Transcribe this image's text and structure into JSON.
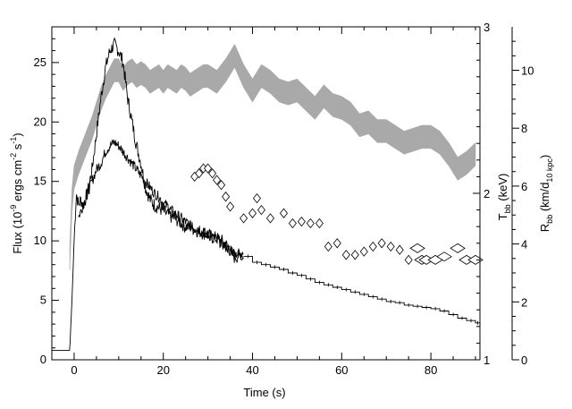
{
  "chart_data": {
    "type": "line",
    "title": "",
    "xlabel": "Time (s)",
    "ylabel": {
      "main": "Flux (10",
      "exp1": "-9",
      "mid1": " ergs cm",
      "exp2": "-2",
      "mid2": " s",
      "exp3": "-1",
      "end": ")"
    },
    "y2label_temp": {
      "main": "T",
      "sub": "bb",
      "end": " (keV)"
    },
    "y2label_radius": {
      "main": "R",
      "sub1": "bb",
      "mid": " (km/d",
      "sub2": "10 kpc",
      "end": ")"
    },
    "xlim": [
      -5,
      91
    ],
    "ylim": [
      0,
      28
    ],
    "temp_lim": [
      1,
      3
    ],
    "radius_lim": [
      0,
      11.5
    ],
    "x_ticks": [
      0,
      20,
      40,
      60,
      80
    ],
    "y_ticks": [
      0,
      5,
      10,
      15,
      20,
      25
    ],
    "temp_ticks": [
      1,
      2,
      3
    ],
    "radius_ticks": [
      0,
      2,
      4,
      6,
      8,
      10
    ],
    "series": [
      {
        "kind": "flux_bright",
        "x": [
          -5,
          -1,
          -0.5,
          0,
          0.5,
          1,
          1.5,
          2,
          3,
          4,
          5,
          6,
          7,
          8,
          9,
          10,
          11,
          12,
          13,
          14,
          15,
          16,
          17,
          18,
          19,
          20,
          21,
          22,
          23,
          24,
          25,
          26,
          27,
          28,
          29,
          30,
          31,
          32,
          33,
          34,
          35,
          36,
          37,
          38
        ],
        "y": [
          0.8,
          0.8,
          5,
          10,
          14,
          13,
          13.5,
          13,
          14,
          16,
          19,
          22,
          24.5,
          26,
          26.5,
          26,
          25,
          22,
          20,
          18,
          16.5,
          14.5,
          13.5,
          13,
          12.8,
          12.5,
          12.2,
          12,
          11.8,
          11.5,
          11.2,
          11.2,
          11,
          10.8,
          10.7,
          10.5,
          10.3,
          10.2,
          10,
          9.7,
          9.2,
          8.6,
          8.8,
          9.2
        ]
      },
      {
        "kind": "flux_faint",
        "x": [
          1,
          2,
          3,
          4,
          5,
          6,
          7,
          8,
          9,
          10,
          11,
          12,
          13,
          14,
          15,
          16,
          17,
          18,
          19,
          20,
          21,
          22,
          23,
          24,
          25,
          26,
          27,
          28,
          29,
          30,
          31,
          32,
          33,
          34,
          35,
          36,
          37,
          38
        ],
        "y": [
          12,
          13,
          14,
          15,
          16,
          16.5,
          17.5,
          18,
          18.3,
          18,
          17.5,
          17,
          16.5,
          16,
          15.5,
          15,
          14.5,
          14,
          13.7,
          13.2,
          12.9,
          12.5,
          12.2,
          11.9,
          11.6,
          11.3,
          11.1,
          10.9,
          10.7,
          10.5,
          10.3,
          10.1,
          9.8,
          9.5,
          9.2,
          9,
          8.8,
          8.7
        ]
      },
      {
        "kind": "flux_step",
        "x": [
          38,
          40,
          42,
          44,
          46,
          48,
          50,
          52,
          54,
          56,
          58,
          60,
          62,
          64,
          66,
          68,
          70,
          72,
          74,
          76,
          78,
          80,
          82,
          84,
          86,
          88,
          90
        ],
        "y": [
          8.7,
          8.2,
          8.0,
          7.8,
          7.6,
          7.3,
          7.1,
          6.8,
          6.5,
          6.3,
          6.1,
          5.9,
          5.7,
          5.5,
          5.3,
          5.1,
          4.9,
          4.8,
          4.6,
          4.5,
          4.4,
          4.3,
          4.1,
          3.8,
          3.5,
          3.3,
          3.1
        ]
      },
      {
        "kind": "radius_band",
        "x": [
          -1,
          -0.5,
          0,
          1,
          2,
          3,
          4,
          5,
          6,
          7,
          8,
          9,
          10,
          11,
          12,
          13,
          14,
          15,
          16,
          17,
          18,
          19,
          20,
          21,
          22,
          23,
          24,
          25,
          26,
          27,
          28,
          29,
          30,
          32,
          34,
          36,
          38,
          40,
          42,
          44,
          46,
          48,
          50,
          52,
          54,
          56,
          58,
          60,
          62,
          64,
          66,
          68,
          70,
          72,
          74,
          76,
          78,
          80,
          82,
          84,
          86,
          88,
          90
        ],
        "y": [
          3.5,
          5.5,
          6.3,
          6.8,
          7.2,
          7.6,
          8.0,
          8.5,
          9.0,
          9.4,
          9.7,
          10.0,
          10.0,
          9.7,
          9.9,
          10.0,
          9.8,
          9.9,
          9.8,
          9.6,
          9.7,
          9.8,
          9.6,
          9.8,
          9.7,
          9.6,
          9.8,
          9.7,
          9.5,
          9.6,
          9.7,
          9.8,
          9.8,
          9.6,
          10.0,
          10.5,
          9.8,
          9.3,
          9.8,
          9.6,
          9.3,
          9.2,
          9.3,
          9.0,
          8.7,
          9.1,
          8.8,
          8.7,
          8.5,
          8.1,
          8.2,
          7.9,
          7.9,
          7.7,
          7.5,
          7.6,
          7.7,
          7.7,
          7.5,
          7.1,
          6.6,
          6.8,
          7.1
        ],
        "band": 0.4
      },
      {
        "kind": "temperature_diamonds",
        "x": [
          27,
          28,
          29,
          30,
          31,
          32,
          33,
          34,
          35,
          38,
          40,
          41,
          42,
          44,
          47,
          49,
          51,
          53,
          55,
          57,
          59,
          61,
          63,
          65,
          67,
          69,
          71,
          73,
          75,
          77,
          78,
          79,
          81,
          83,
          86,
          88,
          90
        ],
        "y": [
          2.1,
          2.12,
          2.15,
          2.15,
          2.12,
          2.08,
          2.05,
          1.98,
          1.92,
          1.85,
          1.88,
          1.97,
          1.9,
          1.85,
          1.88,
          1.82,
          1.83,
          1.82,
          1.82,
          1.68,
          1.7,
          1.63,
          1.63,
          1.65,
          1.68,
          1.7,
          1.68,
          1.66,
          1.6,
          1.67,
          1.6,
          1.6,
          1.6,
          1.62,
          1.67,
          1.6,
          1.6
        ]
      }
    ]
  }
}
